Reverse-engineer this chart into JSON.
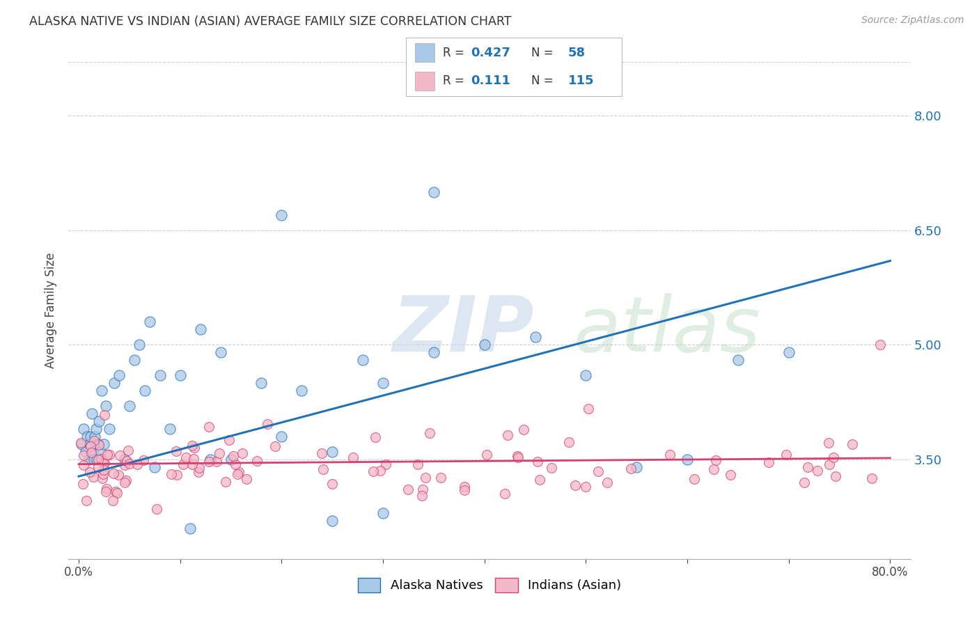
{
  "title": "ALASKA NATIVE VS INDIAN (ASIAN) AVERAGE FAMILY SIZE CORRELATION CHART",
  "source": "Source: ZipAtlas.com",
  "ylabel": "Average Family Size",
  "legend_label1": "Alaska Natives",
  "legend_label2": "Indians (Asian)",
  "color_blue": "#a8c8e8",
  "color_pink": "#f4b8c8",
  "color_blue_dark": "#2171b5",
  "color_pink_dark": "#d44070",
  "blue_line_start_y": 3.28,
  "blue_line_end_y": 6.1,
  "pink_line_start_y": 3.44,
  "pink_line_end_y": 3.52,
  "xlim": [
    -1,
    82
  ],
  "ylim": [
    2.2,
    8.7
  ],
  "yticks": [
    3.5,
    5.0,
    6.5,
    8.0
  ]
}
